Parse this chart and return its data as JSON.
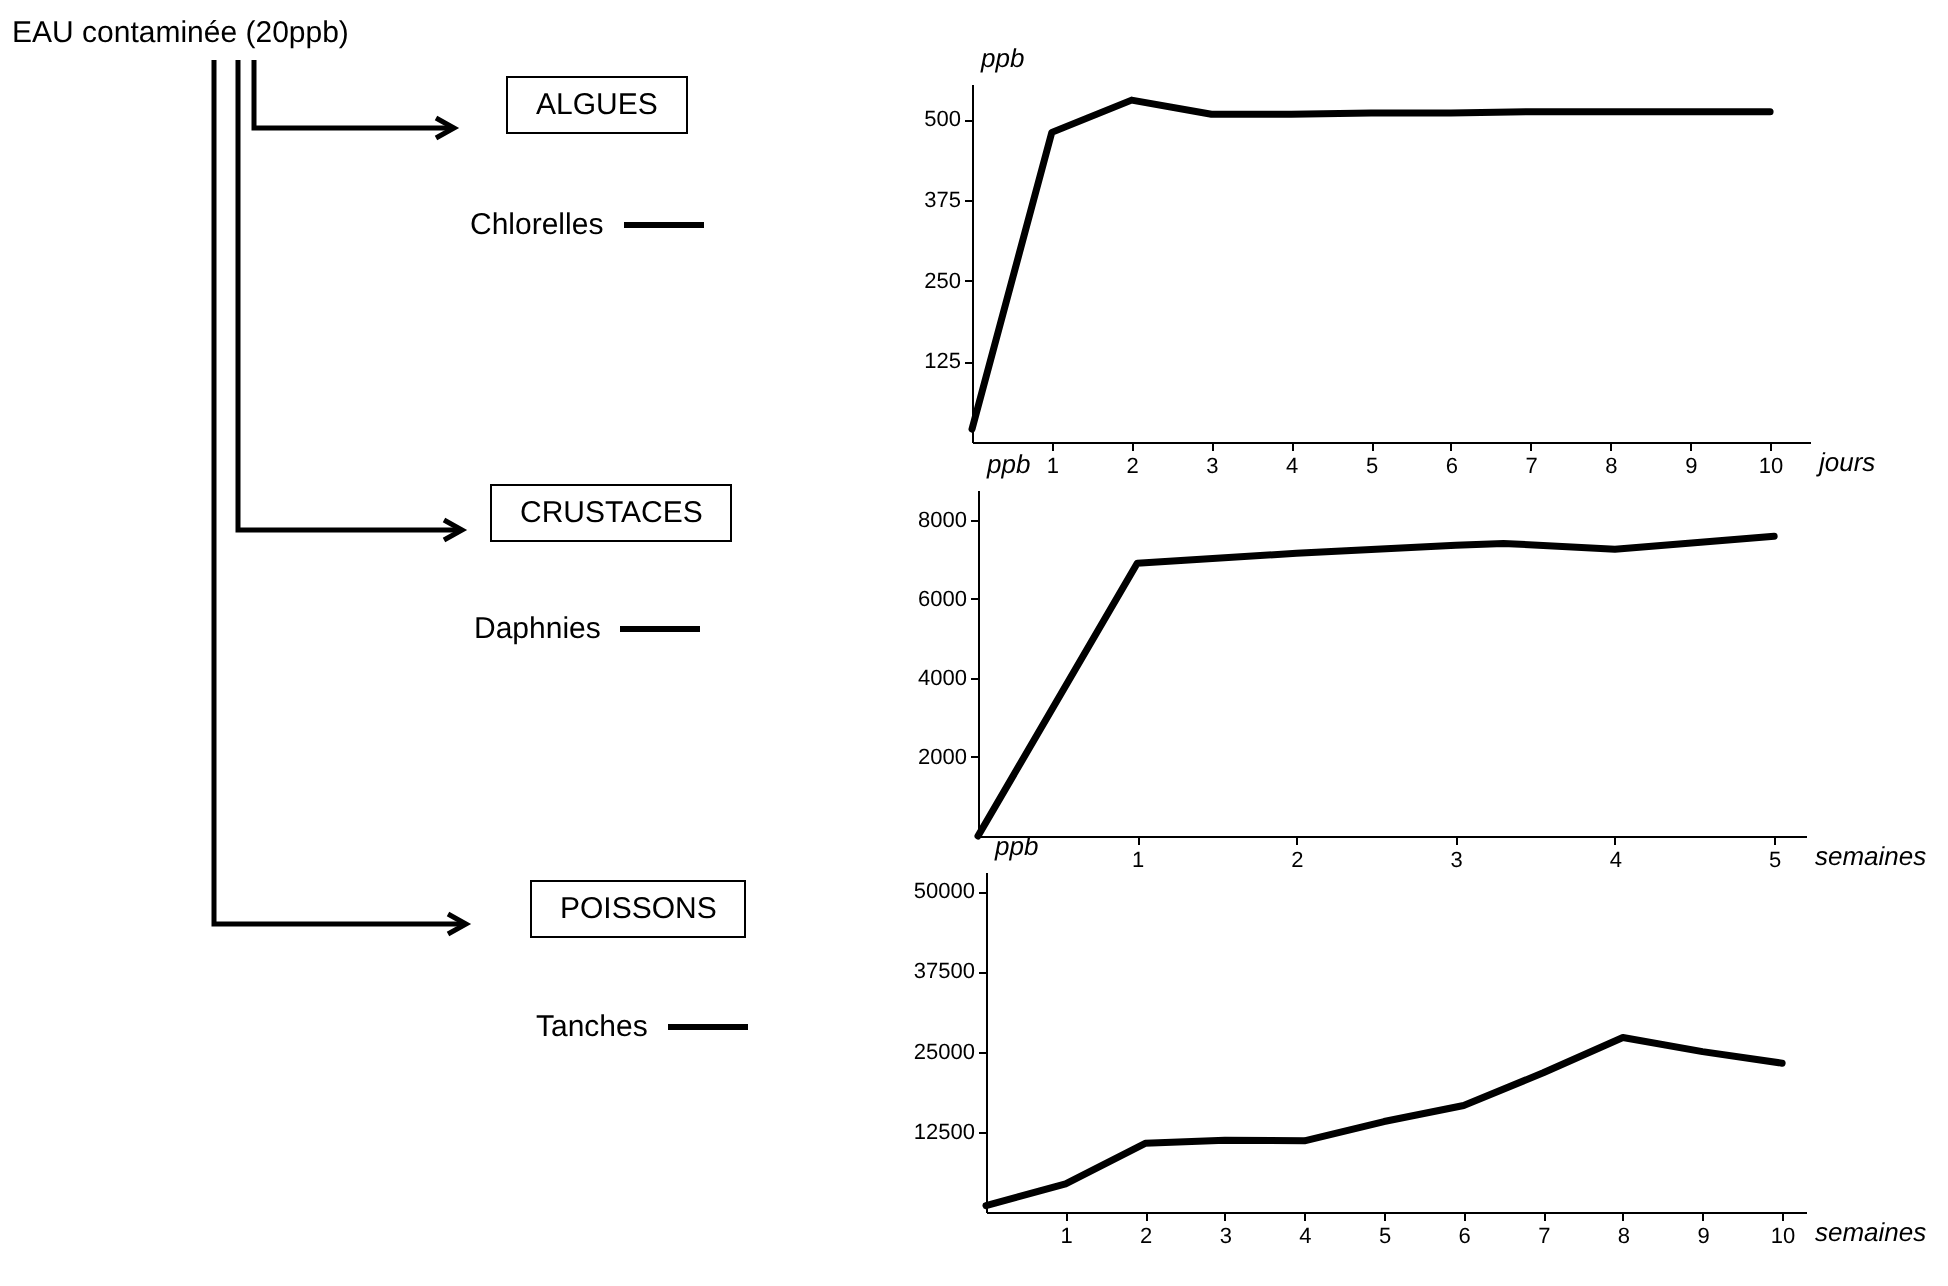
{
  "chart_data": [
    {
      "type": "line",
      "legend_title": "ALGUES",
      "xlabel": "jours",
      "ylabel": "ppb",
      "legend": "left",
      "annotations": [
        "EAU contaminée (20ppb)"
      ],
      "x": [
        0,
        1,
        2,
        3,
        4,
        5,
        6,
        7,
        8,
        9,
        10
      ],
      "series": [
        {
          "name": "Chlorelles",
          "color": "#000000",
          "values": [
            20,
            480,
            530,
            508,
            508,
            510,
            510,
            512,
            512,
            512,
            512
          ]
        }
      ],
      "xlim": [
        0,
        10.5
      ],
      "xticks": [
        1,
        2,
        3,
        4,
        5,
        6,
        7,
        8,
        9,
        10
      ],
      "ylim": [
        0,
        555
      ],
      "yticks": [
        125,
        250,
        375,
        500
      ]
    },
    {
      "type": "line",
      "legend_title": "CRUSTACES",
      "xlabel": "semaines",
      "ylabel": "ppb",
      "legend": "left",
      "x": [
        0,
        1,
        2,
        3,
        3.3,
        4,
        5
      ],
      "series": [
        {
          "name": "Daphnies",
          "color": "#000000",
          "values": [
            0,
            6900,
            7150,
            7350,
            7400,
            7250,
            7580
          ]
        }
      ],
      "xlim": [
        0,
        5.2
      ],
      "xticks": [
        1,
        2,
        3,
        4,
        5
      ],
      "ylim": [
        0,
        8750
      ],
      "yticks": [
        2000,
        4000,
        6000,
        8000
      ]
    },
    {
      "type": "line",
      "legend_title": "POISSONS",
      "xlabel": "semaines",
      "ylabel": "ppb",
      "legend": "left",
      "x": [
        0,
        1,
        2,
        3,
        4,
        5,
        6,
        7,
        8,
        9,
        10
      ],
      "series": [
        {
          "name": "Tanches",
          "color": "#000000",
          "values": [
            1000,
            4400,
            10700,
            11200,
            11100,
            14100,
            16600,
            21700,
            27200,
            25000,
            23200
          ]
        }
      ],
      "xlim": [
        0,
        10.3
      ],
      "xticks": [
        1,
        2,
        3,
        4,
        5,
        6,
        7,
        8,
        9,
        10
      ],
      "ylim": [
        0,
        53000
      ],
      "yticks": [
        12500,
        25000,
        37500,
        50000
      ]
    }
  ]
}
